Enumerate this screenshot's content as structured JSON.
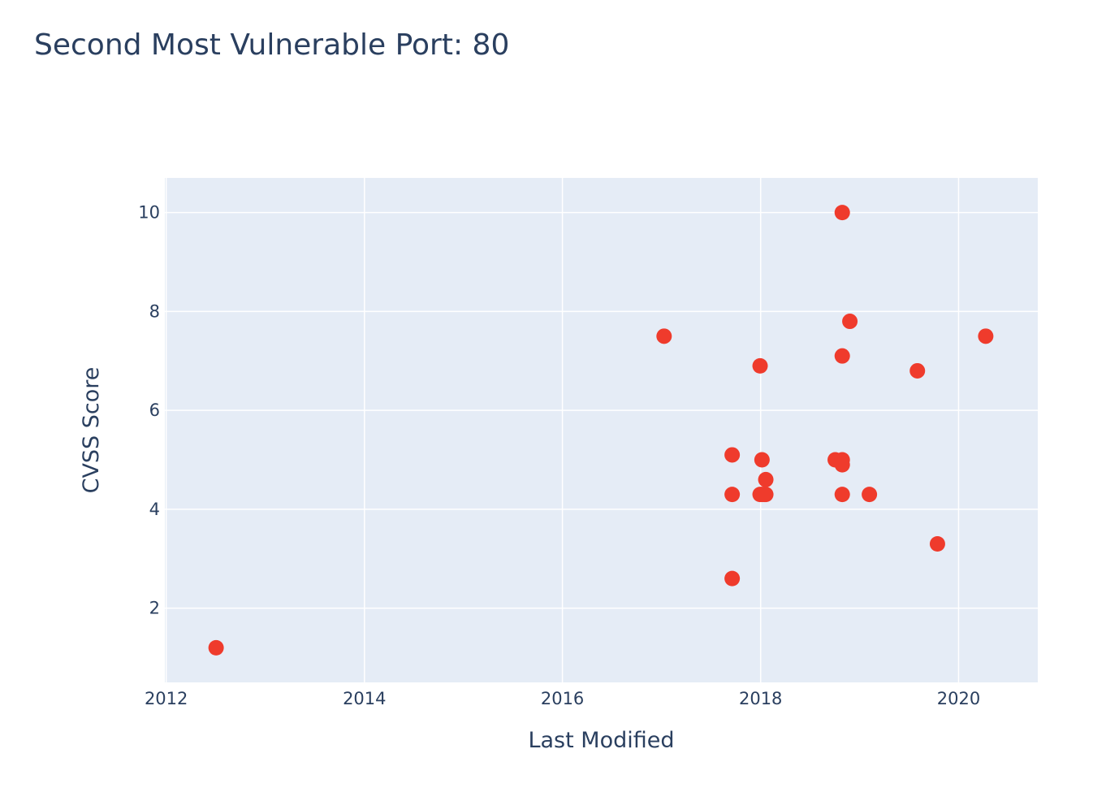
{
  "chart_data": {
    "type": "scatter",
    "title": "Second Most Vulnerable Port: 80",
    "xlabel": "Last Modified",
    "ylabel": "CVSS Score",
    "x_axis_type": "date",
    "xlim": [
      "2011-12-27",
      "2020-10-19"
    ],
    "ylim": [
      0.5,
      10.7
    ],
    "x_ticks": [
      {
        "value": "2012-01-01",
        "label": "2012"
      },
      {
        "value": "2014-01-01",
        "label": "2014"
      },
      {
        "value": "2016-01-01",
        "label": "2016"
      },
      {
        "value": "2018-01-01",
        "label": "2018"
      },
      {
        "value": "2020-01-01",
        "label": "2020"
      }
    ],
    "y_ticks": [
      2,
      4,
      6,
      8,
      10
    ],
    "grid": true,
    "legend": "none",
    "colors": {
      "marker": "#ef3b2c",
      "plot_bg": "#e5ecf6",
      "grid": "#ffffff",
      "text": "#2a3f5f"
    },
    "series": [
      {
        "x": [
          "2012-07-03",
          "2017-01-10",
          "2017-09-18",
          "2017-09-18",
          "2017-09-18",
          "2017-12-30",
          "2017-12-30",
          "2018-01-06",
          "2018-01-06",
          "2018-01-14",
          "2018-01-20",
          "2018-01-20",
          "2018-10-03",
          "2018-10-29",
          "2018-10-29",
          "2018-10-29",
          "2018-10-29",
          "2018-10-29",
          "2018-11-26",
          "2019-02-06",
          "2019-08-02",
          "2019-10-15",
          "2020-04-10"
        ],
        "y": [
          1.2,
          7.5,
          5.1,
          4.3,
          2.6,
          6.9,
          4.3,
          5.0,
          4.3,
          4.3,
          4.6,
          4.3,
          5.0,
          10.0,
          7.1,
          5.0,
          4.9,
          4.3,
          7.8,
          4.3,
          6.8,
          3.3,
          7.5
        ]
      }
    ]
  }
}
